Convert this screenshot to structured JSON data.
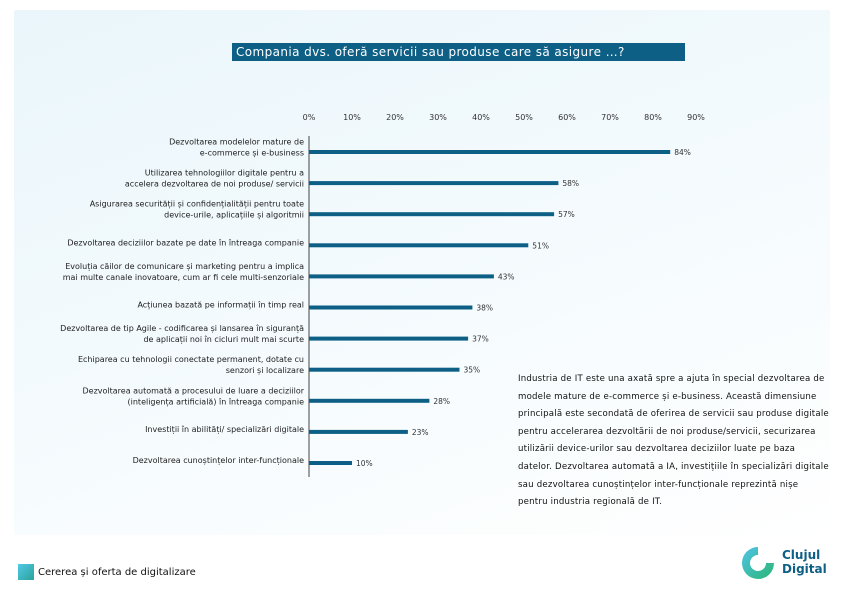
{
  "chart_data": {
    "type": "bar",
    "orientation": "horizontal",
    "title": "Compania dvs. oferă servicii sau produse care să asigure …?",
    "x_ticks": [
      "0%",
      "10%",
      "20%",
      "30%",
      "40%",
      "50%",
      "60%",
      "70%",
      "80%",
      "90%"
    ],
    "xlim": [
      0,
      90
    ],
    "categories": [
      [
        "Dezvoltarea modelelor mature de",
        "e-commerce și e-business"
      ],
      [
        "Utilizarea tehnologiilor digitale pentru a",
        "accelera dezvoltarea de noi produse/ servicii"
      ],
      [
        "Asigurarea securității și confidențialității pentru toate",
        "device-urile, aplicațiile și algoritmii"
      ],
      [
        "Dezvoltarea deciziilor bazate pe date în întreaga companie"
      ],
      [
        "Evoluția căilor de comunicare și marketing pentru a implica",
        "mai multe canale inovatoare, cum ar fi cele multi-senzoriale"
      ],
      [
        "Acțiunea bazată pe informații în timp real"
      ],
      [
        "Dezvoltarea de tip Agile - codificarea și lansarea în siguranță",
        "de aplicații noi în cicluri mult mai scurte"
      ],
      [
        "Echiparea cu tehnologii conectate permanent, dotate cu",
        "senzori și localizare"
      ],
      [
        "Dezvoltarea automată a procesului de luare a deciziilor",
        "(inteligența artificială) în întreaga companie"
      ],
      [
        "Investiții în abilități/ specializări digitale"
      ],
      [
        "Dezvoltarea cunoștințelor inter-funcționale"
      ]
    ],
    "values": [
      84,
      58,
      57,
      51,
      43,
      38,
      37,
      35,
      28,
      23,
      10
    ],
    "value_labels": [
      "84%",
      "58%",
      "57%",
      "51%",
      "43%",
      "38%",
      "37%",
      "35%",
      "28%",
      "23%",
      "10%"
    ],
    "bar_color": "#0d5f86"
  },
  "paragraph": "Industria de IT este una axată spre a ajuta în special dezvoltarea de modele mature de e-commerce și e-business. Această dimensiune principală este secondată de oferirea de servicii sau produse digitale pentru accelerarea dezvoltării de noi produse/servicii, securizarea utilizării device-urilor sau dezvoltarea deciziilor luate pe baza datelor. Dezvoltarea automată a IA, investițiile în specializări digitale sau dezvoltarea cunoștințelor inter-funcționale reprezintă nișe pentru industria regională de IT.",
  "footer": {
    "label": "Cererea și oferta de digitalizare"
  },
  "logo": {
    "line1": "Clujul",
    "line2": "Digital"
  }
}
